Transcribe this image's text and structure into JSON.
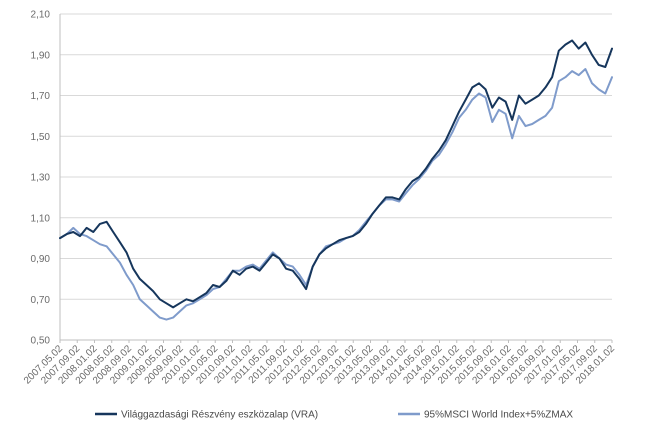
{
  "chart_data": {
    "type": "line",
    "title": "",
    "xlabel": "",
    "ylabel": "",
    "ylim": [
      0.5,
      2.1
    ],
    "y_ticks": [
      "0,50",
      "0,70",
      "0,90",
      "1,10",
      "1,30",
      "1,50",
      "1,70",
      "1,90",
      "2,10"
    ],
    "y_tick_values": [
      0.5,
      0.7,
      0.9,
      1.1,
      1.3,
      1.5,
      1.7,
      1.9,
      2.1
    ],
    "x_ticks": [
      "2007.05.02",
      "2007.09.02",
      "2008.01.02",
      "2008.05.02",
      "2008.09.02",
      "2009.01.02",
      "2009.05.02",
      "2009.09.02",
      "2010.01.02",
      "2010.05.02",
      "2010.09.02",
      "2011.01.02",
      "2011.05.02",
      "2011.09.02",
      "2012.01.02",
      "2012.05.02",
      "2012.09.02",
      "2013.01.02",
      "2013.05.02",
      "2013.09.02",
      "2014.01.02",
      "2014.05.02",
      "2014.09.02",
      "2015.01.02",
      "2015.05.02",
      "2015.09.02",
      "2016.01.02",
      "2016.05.02",
      "2016.09.02",
      "2017.01.02",
      "2017.05.02",
      "2017.09.02",
      "2018.01.02"
    ],
    "grid": "horizontal",
    "legend_position": "bottom",
    "series": [
      {
        "name": "Világgazdasági Részvény eszközalap (VRA)",
        "color": "#16365c",
        "values": [
          1.0,
          1.02,
          1.03,
          1.01,
          1.05,
          1.03,
          1.07,
          1.08,
          1.03,
          0.98,
          0.93,
          0.85,
          0.8,
          0.77,
          0.74,
          0.7,
          0.68,
          0.66,
          0.68,
          0.7,
          0.69,
          0.71,
          0.73,
          0.77,
          0.76,
          0.79,
          0.84,
          0.82,
          0.85,
          0.86,
          0.84,
          0.88,
          0.92,
          0.9,
          0.85,
          0.84,
          0.8,
          0.75,
          0.86,
          0.92,
          0.95,
          0.97,
          0.99,
          1.0,
          1.01,
          1.03,
          1.07,
          1.12,
          1.16,
          1.2,
          1.2,
          1.19,
          1.24,
          1.28,
          1.3,
          1.34,
          1.39,
          1.43,
          1.48,
          1.55,
          1.62,
          1.68,
          1.74,
          1.76,
          1.73,
          1.64,
          1.69,
          1.67,
          1.58,
          1.7,
          1.66,
          1.68,
          1.7,
          1.74,
          1.79,
          1.92,
          1.95,
          1.97,
          1.93,
          1.96,
          1.9,
          1.85,
          1.84,
          1.93
        ]
      },
      {
        "name": "95%MSCI World Index+5%ZMAX",
        "color": "#7f9bcb",
        "values": [
          1.0,
          1.02,
          1.05,
          1.02,
          1.01,
          0.99,
          0.97,
          0.96,
          0.92,
          0.88,
          0.82,
          0.77,
          0.7,
          0.67,
          0.64,
          0.61,
          0.6,
          0.61,
          0.64,
          0.67,
          0.68,
          0.7,
          0.72,
          0.75,
          0.76,
          0.8,
          0.84,
          0.84,
          0.86,
          0.87,
          0.85,
          0.89,
          0.93,
          0.9,
          0.87,
          0.86,
          0.82,
          0.77,
          0.86,
          0.92,
          0.96,
          0.97,
          0.98,
          1.0,
          1.01,
          1.04,
          1.08,
          1.12,
          1.16,
          1.19,
          1.19,
          1.18,
          1.22,
          1.26,
          1.29,
          1.33,
          1.38,
          1.41,
          1.46,
          1.52,
          1.59,
          1.63,
          1.68,
          1.71,
          1.69,
          1.57,
          1.63,
          1.61,
          1.49,
          1.6,
          1.55,
          1.56,
          1.58,
          1.6,
          1.64,
          1.77,
          1.79,
          1.82,
          1.8,
          1.83,
          1.76,
          1.73,
          1.71,
          1.79
        ]
      }
    ]
  }
}
